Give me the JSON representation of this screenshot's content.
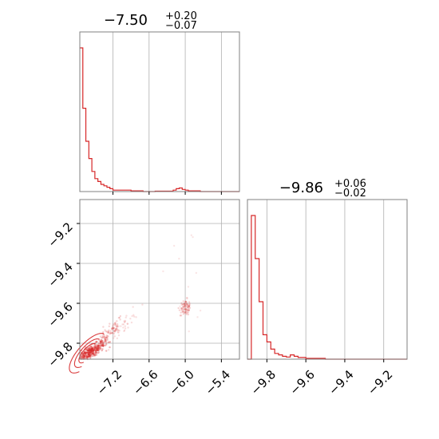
{
  "chart_data": [
    {
      "panel": "hist-param-1",
      "type": "histogram",
      "title": {
        "main": "−7.50",
        "plus": "+0.20",
        "minus": "−0.07"
      },
      "color": "#d62728",
      "xlim": [
        -7.75,
        -5.1
      ],
      "grid": true,
      "bins": [
        {
          "x0": -7.75,
          "x1": -7.7,
          "count": 1.0
        },
        {
          "x0": -7.7,
          "x1": -7.65,
          "count": 0.58
        },
        {
          "x0": -7.65,
          "x1": -7.6,
          "count": 0.35
        },
        {
          "x0": -7.6,
          "x1": -7.55,
          "count": 0.23
        },
        {
          "x0": -7.55,
          "x1": -7.5,
          "count": 0.14
        },
        {
          "x0": -7.5,
          "x1": -7.45,
          "count": 0.09
        },
        {
          "x0": -7.45,
          "x1": -7.4,
          "count": 0.07
        },
        {
          "x0": -7.4,
          "x1": -7.35,
          "count": 0.05
        },
        {
          "x0": -7.35,
          "x1": -7.3,
          "count": 0.04
        },
        {
          "x0": -7.3,
          "x1": -7.25,
          "count": 0.03
        },
        {
          "x0": -7.25,
          "x1": -7.2,
          "count": 0.02
        },
        {
          "x0": -7.2,
          "x1": -7.1,
          "count": 0.01
        },
        {
          "x0": -7.1,
          "x1": -6.9,
          "count": 0.01
        },
        {
          "x0": -6.9,
          "x1": -6.8,
          "count": 0.005
        },
        {
          "x0": -6.8,
          "x1": -6.7,
          "count": 0.005
        },
        {
          "x0": -6.7,
          "x1": -6.5,
          "count": 0.0
        },
        {
          "x0": -6.5,
          "x1": -6.2,
          "count": 0.003
        },
        {
          "x0": -6.2,
          "x1": -6.15,
          "count": 0.01
        },
        {
          "x0": -6.15,
          "x1": -6.1,
          "count": 0.02
        },
        {
          "x0": -6.1,
          "x1": -6.05,
          "count": 0.025
        },
        {
          "x0": -6.05,
          "x1": -6.0,
          "count": 0.015
        },
        {
          "x0": -6.0,
          "x1": -5.95,
          "count": 0.01
        },
        {
          "x0": -5.95,
          "x1": -5.75,
          "count": 0.005
        },
        {
          "x0": -5.75,
          "x1": -5.1,
          "count": 0.0
        }
      ]
    },
    {
      "panel": "scatter-param-1-vs-2",
      "type": "scatter",
      "color": "#d62728",
      "xlim": [
        -7.75,
        -5.1
      ],
      "ylim": [
        -9.88,
        -9.08
      ],
      "grid": true,
      "x_ticks": [
        -7.2,
        -6.6,
        -6.0,
        -5.4
      ],
      "x_tick_labels": [
        "−7.2",
        "−6.6",
        "−6.0",
        "−5.4"
      ],
      "y_ticks": [
        -9.2,
        -9.4,
        -9.6,
        -9.8
      ],
      "y_tick_labels": [
        "−9.2",
        "−9.4",
        "−9.6",
        "−9.8"
      ],
      "clusters": [
        {
          "cx": -7.58,
          "cy": -9.845,
          "sx": 0.12,
          "sy": 0.025,
          "n": 320,
          "alpha": 0.35,
          "corr": 0.8
        },
        {
          "cx": -7.3,
          "cy": -9.77,
          "sx": 0.14,
          "sy": 0.05,
          "n": 120,
          "alpha": 0.2,
          "corr": 0.9
        },
        {
          "cx": -7.0,
          "cy": -9.7,
          "sx": 0.12,
          "sy": 0.04,
          "n": 40,
          "alpha": 0.15,
          "corr": 0.8
        },
        {
          "cx": -6.0,
          "cy": -9.62,
          "sx": 0.05,
          "sy": 0.02,
          "n": 35,
          "alpha": 0.2,
          "corr": 0.0
        },
        {
          "cx": -5.95,
          "cy": -9.45,
          "sx": 0.18,
          "sy": 0.12,
          "n": 14,
          "alpha": 0.12,
          "corr": 0.0
        }
      ]
    },
    {
      "panel": "hist-param-2",
      "type": "histogram",
      "title": {
        "main": "−9.86",
        "plus": "+0.06",
        "minus": "−0.02"
      },
      "color": "#d62728",
      "xlim": [
        -9.9,
        -9.08
      ],
      "grid": true,
      "x_ticks": [
        -9.8,
        -9.6,
        -9.4,
        -9.2
      ],
      "x_tick_labels": [
        "−9.8",
        "−9.6",
        "−9.4",
        "−9.2"
      ],
      "bins": [
        {
          "x0": -9.9,
          "x1": -9.88,
          "count": 0.0
        },
        {
          "x0": -9.88,
          "x1": -9.86,
          "count": 1.0
        },
        {
          "x0": -9.86,
          "x1": -9.84,
          "count": 0.7
        },
        {
          "x0": -9.84,
          "x1": -9.82,
          "count": 0.4
        },
        {
          "x0": -9.82,
          "x1": -9.8,
          "count": 0.17
        },
        {
          "x0": -9.8,
          "x1": -9.78,
          "count": 0.12
        },
        {
          "x0": -9.78,
          "x1": -9.76,
          "count": 0.07
        },
        {
          "x0": -9.76,
          "x1": -9.74,
          "count": 0.04
        },
        {
          "x0": -9.74,
          "x1": -9.72,
          "count": 0.03
        },
        {
          "x0": -9.72,
          "x1": -9.7,
          "count": 0.02
        },
        {
          "x0": -9.7,
          "x1": -9.68,
          "count": 0.015
        },
        {
          "x0": -9.68,
          "x1": -9.66,
          "count": 0.03
        },
        {
          "x0": -9.66,
          "x1": -9.64,
          "count": 0.02
        },
        {
          "x0": -9.64,
          "x1": -9.6,
          "count": 0.012
        },
        {
          "x0": -9.6,
          "x1": -9.5,
          "count": 0.006
        },
        {
          "x0": -9.5,
          "x1": -9.08,
          "count": 0.0
        }
      ]
    }
  ]
}
